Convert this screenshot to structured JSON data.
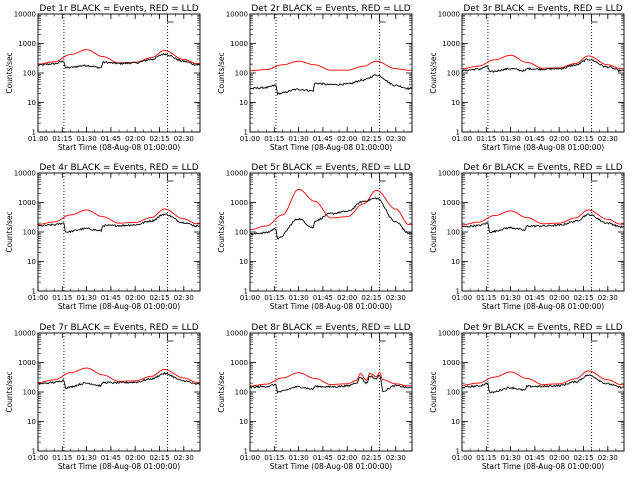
{
  "chart_data": [
    {
      "type": "line",
      "title": "Det 1r BLACK = Events, RED = LLD",
      "xlabel": "Start Time (08-Aug-08 01:00:00)",
      "ylabel": "Counts/sec",
      "yscale": "log",
      "ylim": [
        1,
        10000
      ],
      "xlim": [
        "01:00",
        "02:40"
      ],
      "x_ticks": [
        "01:00",
        "01:15",
        "01:30",
        "01:45",
        "02:00",
        "02:15",
        "02:30"
      ],
      "y_ticks": [
        "1",
        "10",
        "100",
        "1000",
        "10000"
      ],
      "vlines": [
        "01:16",
        "02:20"
      ],
      "flag_marker": "02:20",
      "series": [
        {
          "color": "#ff0000",
          "style": "smooth",
          "x": [
            "01:00",
            "01:10",
            "01:20",
            "01:30",
            "01:40",
            "01:50",
            "02:00",
            "02:10",
            "02:18",
            "02:30",
            "02:38"
          ],
          "values": [
            200,
            240,
            420,
            620,
            360,
            220,
            230,
            330,
            580,
            290,
            210
          ]
        },
        {
          "color": "#000000",
          "style": "noisy",
          "x": [
            "01:00",
            "01:10",
            "01:16",
            "01:17",
            "01:30",
            "01:39",
            "01:40",
            "01:50",
            "02:00",
            "02:10",
            "02:18",
            "02:30",
            "02:38"
          ],
          "values": [
            185,
            205,
            250,
            150,
            180,
            150,
            230,
            210,
            220,
            290,
            440,
            250,
            190
          ]
        }
      ]
    },
    {
      "type": "line",
      "title": "Det 2r BLACK = Events, RED = LLD",
      "xlabel": "Start Time (08-Aug-08 01:00:00)",
      "ylabel": "Counts/sec",
      "yscale": "log",
      "ylim": [
        1,
        10000
      ],
      "xlim": [
        "01:00",
        "02:40"
      ],
      "x_ticks": [
        "01:00",
        "01:15",
        "01:30",
        "01:45",
        "02:00",
        "02:15",
        "02:30"
      ],
      "y_ticks": [
        "1",
        "10",
        "100",
        "1000",
        "10000"
      ],
      "vlines": [
        "01:16",
        "02:20"
      ],
      "flag_marker": "02:20",
      "series": [
        {
          "color": "#ff0000",
          "style": "smooth",
          "x": [
            "01:00",
            "01:10",
            "01:20",
            "01:30",
            "01:40",
            "01:50",
            "02:00",
            "02:10",
            "02:18",
            "02:30",
            "02:38"
          ],
          "values": [
            120,
            130,
            190,
            250,
            190,
            125,
            125,
            170,
            250,
            140,
            125
          ]
        },
        {
          "color": "#000000",
          "style": "noisy",
          "x": [
            "01:00",
            "01:10",
            "01:16",
            "01:17",
            "01:30",
            "01:39",
            "01:40",
            "01:50",
            "02:00",
            "02:10",
            "02:18",
            "02:30",
            "02:38"
          ],
          "values": [
            30,
            32,
            38,
            20,
            28,
            25,
            45,
            40,
            42,
            58,
            85,
            38,
            30
          ]
        }
      ]
    },
    {
      "type": "line",
      "title": "Det 3r BLACK = Events, RED = LLD",
      "xlabel": "Start Time (08-Aug-08 01:00:00)",
      "ylabel": "Counts/sec",
      "yscale": "log",
      "ylim": [
        1,
        10000
      ],
      "xlim": [
        "01:00",
        "02:40"
      ],
      "x_ticks": [
        "01:00",
        "01:15",
        "01:30",
        "01:45",
        "02:00",
        "02:15",
        "02:30"
      ],
      "y_ticks": [
        "1",
        "10",
        "100",
        "1000",
        "10000"
      ],
      "vlines": [
        "01:16",
        "02:20"
      ],
      "flag_marker": "02:20",
      "series": [
        {
          "color": "#ff0000",
          "style": "smooth",
          "x": [
            "01:00",
            "01:10",
            "01:20",
            "01:30",
            "01:40",
            "01:50",
            "02:00",
            "02:10",
            "02:18",
            "02:30",
            "02:38"
          ],
          "values": [
            140,
            170,
            280,
            400,
            230,
            145,
            150,
            210,
            380,
            190,
            140
          ]
        },
        {
          "color": "#000000",
          "style": "noisy",
          "x": [
            "01:00",
            "01:10",
            "01:16",
            "01:17",
            "01:30",
            "01:39",
            "01:40",
            "01:50",
            "02:00",
            "02:10",
            "02:18",
            "02:30",
            "02:38"
          ],
          "values": [
            120,
            135,
            165,
            110,
            140,
            118,
            140,
            135,
            140,
            185,
            290,
            160,
            120
          ]
        }
      ]
    },
    {
      "type": "line",
      "title": "Det 4r BLACK = Events, RED = LLD",
      "xlabel": "Start Time (08-Aug-08 01:00:00)",
      "ylabel": "Counts/sec",
      "yscale": "log",
      "ylim": [
        1,
        10000
      ],
      "xlim": [
        "01:00",
        "02:40"
      ],
      "x_ticks": [
        "01:00",
        "01:15",
        "01:30",
        "01:45",
        "02:00",
        "02:15",
        "02:30"
      ],
      "y_ticks": [
        "1",
        "10",
        "100",
        "1000",
        "10000"
      ],
      "vlines": [
        "01:16",
        "02:20"
      ],
      "flag_marker": "02:20",
      "series": [
        {
          "color": "#ff0000",
          "style": "smooth",
          "x": [
            "01:00",
            "01:10",
            "01:20",
            "01:30",
            "01:40",
            "01:50",
            "02:00",
            "02:10",
            "02:18",
            "02:30",
            "02:38"
          ],
          "values": [
            180,
            220,
            380,
            560,
            330,
            200,
            210,
            310,
            600,
            280,
            190
          ]
        },
        {
          "color": "#000000",
          "style": "noisy",
          "x": [
            "01:00",
            "01:10",
            "01:16",
            "01:17",
            "01:30",
            "01:39",
            "01:40",
            "01:50",
            "02:00",
            "02:10",
            "02:18",
            "02:30",
            "02:38"
          ],
          "values": [
            160,
            175,
            200,
            100,
            130,
            110,
            165,
            165,
            175,
            240,
            400,
            210,
            160
          ]
        }
      ]
    },
    {
      "type": "line",
      "title": "Det 5r BLACK = Events, RED = LLD",
      "xlabel": "Start Time (08-Aug-08 01:00:00)",
      "ylabel": "Counts/sec",
      "yscale": "log",
      "ylim": [
        1,
        10000
      ],
      "xlim": [
        "01:00",
        "02:40"
      ],
      "x_ticks": [
        "01:00",
        "01:15",
        "01:30",
        "01:45",
        "02:00",
        "02:15",
        "02:30"
      ],
      "y_ticks": [
        "1",
        "10",
        "100",
        "1000",
        "10000"
      ],
      "vlines": [
        "01:16",
        "02:20"
      ],
      "flag_marker": "02:20",
      "series": [
        {
          "color": "#ff0000",
          "style": "smooth",
          "x": [
            "01:00",
            "01:10",
            "01:20",
            "01:30",
            "01:40",
            "01:50",
            "02:00",
            "02:10",
            "02:18",
            "02:30",
            "02:38"
          ],
          "values": [
            120,
            160,
            380,
            2800,
            1100,
            300,
            330,
            900,
            2600,
            600,
            180
          ]
        },
        {
          "color": "#000000",
          "style": "noisy",
          "x": [
            "01:00",
            "01:10",
            "01:16",
            "01:17",
            "01:30",
            "01:39",
            "01:40",
            "01:50",
            "02:00",
            "02:10",
            "02:18",
            "02:30",
            "02:38"
          ],
          "values": [
            85,
            95,
            130,
            60,
            280,
            140,
            240,
            420,
            500,
            1100,
            1400,
            220,
            90
          ]
        }
      ]
    },
    {
      "type": "line",
      "title": "Det 6r BLACK = Events, RED = LLD",
      "xlabel": "Start Time (08-Aug-08 01:00:00)",
      "ylabel": "Counts/sec",
      "yscale": "log",
      "ylim": [
        1,
        10000
      ],
      "xlim": [
        "01:00",
        "02:40"
      ],
      "x_ticks": [
        "01:00",
        "01:15",
        "01:30",
        "01:45",
        "02:00",
        "02:15",
        "02:30"
      ],
      "y_ticks": [
        "1",
        "10",
        "100",
        "1000",
        "10000"
      ],
      "vlines": [
        "01:16",
        "02:20"
      ],
      "flag_marker": "02:20",
      "series": [
        {
          "color": "#ff0000",
          "style": "smooth",
          "x": [
            "01:00",
            "01:10",
            "01:20",
            "01:30",
            "01:40",
            "01:50",
            "02:00",
            "02:10",
            "02:18",
            "02:30",
            "02:38"
          ],
          "values": [
            175,
            215,
            360,
            520,
            310,
            190,
            200,
            300,
            560,
            270,
            185
          ]
        },
        {
          "color": "#000000",
          "style": "noisy",
          "x": [
            "01:00",
            "01:10",
            "01:16",
            "01:17",
            "01:30",
            "01:39",
            "01:40",
            "01:50",
            "02:00",
            "02:10",
            "02:18",
            "02:30",
            "02:38"
          ],
          "values": [
            150,
            165,
            200,
            100,
            140,
            115,
            160,
            160,
            170,
            230,
            390,
            200,
            150
          ]
        }
      ]
    },
    {
      "type": "line",
      "title": "Det 7r BLACK = Events, RED = LLD",
      "xlabel": "Start Time (08-Aug-08 01:00:00)",
      "ylabel": "Counts/sec",
      "yscale": "log",
      "ylim": [
        1,
        10000
      ],
      "xlim": [
        "01:00",
        "02:40"
      ],
      "x_ticks": [
        "01:00",
        "01:15",
        "01:30",
        "01:45",
        "02:00",
        "02:15",
        "02:30"
      ],
      "y_ticks": [
        "1",
        "10",
        "100",
        "1000",
        "10000"
      ],
      "vlines": [
        "01:16",
        "02:20"
      ],
      "flag_marker": "02:20",
      "series": [
        {
          "color": "#ff0000",
          "style": "smooth",
          "x": [
            "01:00",
            "01:10",
            "01:20",
            "01:30",
            "01:40",
            "01:50",
            "02:00",
            "02:10",
            "02:18",
            "02:30",
            "02:38"
          ],
          "values": [
            210,
            260,
            450,
            650,
            380,
            230,
            240,
            340,
            580,
            300,
            215
          ]
        },
        {
          "color": "#000000",
          "style": "noisy",
          "x": [
            "01:00",
            "01:10",
            "01:16",
            "01:17",
            "01:30",
            "01:39",
            "01:40",
            "01:50",
            "02:00",
            "02:10",
            "02:18",
            "02:30",
            "02:38"
          ],
          "values": [
            190,
            210,
            250,
            140,
            200,
            165,
            210,
            205,
            215,
            280,
            420,
            240,
            185
          ]
        }
      ]
    },
    {
      "type": "line",
      "title": "Det 8r BLACK = Events, RED = LLD",
      "xlabel": "Start Time (08-Aug-08 01:00:00)",
      "ylabel": "Counts/sec",
      "yscale": "log",
      "ylim": [
        1,
        10000
      ],
      "xlim": [
        "01:00",
        "02:40"
      ],
      "x_ticks": [
        "01:00",
        "01:15",
        "01:30",
        "01:45",
        "02:00",
        "02:15",
        "02:30"
      ],
      "y_ticks": [
        "1",
        "10",
        "100",
        "1000",
        "10000"
      ],
      "vlines": [
        "01:16",
        "02:20"
      ],
      "flag_marker": "02:20",
      "series": [
        {
          "color": "#ff0000",
          "style": "smooth",
          "x": [
            "01:00",
            "01:10",
            "01:20",
            "01:30",
            "01:40",
            "01:50",
            "02:00",
            "02:06",
            "02:08",
            "02:12",
            "02:14",
            "02:18",
            "02:20",
            "02:22",
            "02:30",
            "02:38"
          ],
          "values": [
            160,
            185,
            300,
            450,
            290,
            180,
            190,
            250,
            420,
            250,
            430,
            330,
            460,
            260,
            190,
            160
          ]
        },
        {
          "color": "#000000",
          "style": "noisy",
          "x": [
            "01:00",
            "01:10",
            "01:16",
            "01:17",
            "01:30",
            "01:39",
            "01:40",
            "01:50",
            "02:00",
            "02:06",
            "02:08",
            "02:12",
            "02:14",
            "02:18",
            "02:20",
            "02:22",
            "02:30",
            "02:38"
          ],
          "values": [
            145,
            155,
            175,
            100,
            150,
            125,
            155,
            150,
            160,
            210,
            320,
            200,
            350,
            280,
            380,
            110,
            165,
            140
          ]
        }
      ]
    },
    {
      "type": "line",
      "title": "Det 9r BLACK = Events, RED = LLD",
      "xlabel": "Start Time (08-Aug-08 01:00:00)",
      "ylabel": "Counts/sec",
      "yscale": "log",
      "ylim": [
        1,
        10000
      ],
      "xlim": [
        "01:00",
        "02:40"
      ],
      "x_ticks": [
        "01:00",
        "01:15",
        "01:30",
        "01:45",
        "02:00",
        "02:15",
        "02:30"
      ],
      "y_ticks": [
        "1",
        "10",
        "100",
        "1000",
        "10000"
      ],
      "vlines": [
        "01:16",
        "02:20"
      ],
      "flag_marker": "02:20",
      "series": [
        {
          "color": "#ff0000",
          "style": "smooth",
          "x": [
            "01:00",
            "01:10",
            "01:20",
            "01:30",
            "01:40",
            "01:50",
            "02:00",
            "02:10",
            "02:18",
            "02:30",
            "02:38"
          ],
          "values": [
            170,
            200,
            320,
            480,
            290,
            180,
            190,
            280,
            520,
            260,
            180
          ]
        },
        {
          "color": "#000000",
          "style": "noisy",
          "x": [
            "01:00",
            "01:10",
            "01:16",
            "01:17",
            "01:30",
            "01:39",
            "01:40",
            "01:50",
            "02:00",
            "02:10",
            "02:18",
            "02:30",
            "02:38"
          ],
          "values": [
            145,
            160,
            195,
            95,
            140,
            115,
            155,
            155,
            165,
            220,
            370,
            190,
            145
          ]
        }
      ]
    }
  ]
}
